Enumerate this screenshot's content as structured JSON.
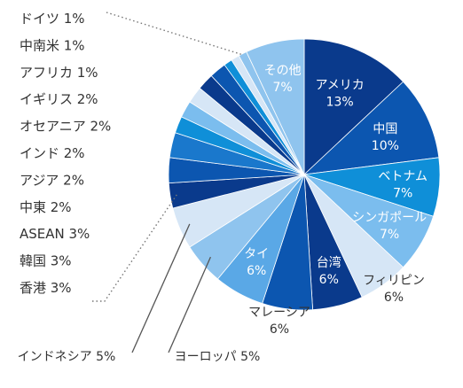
{
  "chart_data": {
    "type": "pie",
    "unit": "%",
    "slices": [
      {
        "label": "アメリカ",
        "value": 13,
        "color": "#0a3a8c"
      },
      {
        "label": "中国",
        "value": 10,
        "color": "#0c56b0"
      },
      {
        "label": "ベトナム",
        "value": 7,
        "color": "#0f8fd8"
      },
      {
        "label": "シンガポール",
        "value": 7,
        "color": "#7bbdee"
      },
      {
        "label": "フィリピン",
        "value": 6,
        "color": "#d6e6f6"
      },
      {
        "label": "台湾",
        "value": 6,
        "color": "#0a3a8c"
      },
      {
        "label": "マレーシア",
        "value": 6,
        "color": "#0c56b0"
      },
      {
        "label": "タイ",
        "value": 6,
        "color": "#5aa8e6"
      },
      {
        "label": "ヨーロッパ",
        "value": 5,
        "color": "#8fc4ee"
      },
      {
        "label": "インドネシア",
        "value": 5,
        "color": "#d6e6f6"
      },
      {
        "label": "香港",
        "value": 3,
        "color": "#0a3a8c"
      },
      {
        "label": "韓国",
        "value": 3,
        "color": "#0c56b0"
      },
      {
        "label": "ASEAN",
        "value": 3,
        "color": "#1a78cc"
      },
      {
        "label": "中東",
        "value": 2,
        "color": "#0f8fd8"
      },
      {
        "label": "アジア",
        "value": 2,
        "color": "#7bbdee"
      },
      {
        "label": "インド",
        "value": 2,
        "color": "#d6e6f6"
      },
      {
        "label": "オセアニア",
        "value": 2,
        "color": "#0a3a8c"
      },
      {
        "label": "イギリス",
        "value": 2,
        "color": "#0c56b0"
      },
      {
        "label": "アフリカ",
        "value": 1,
        "color": "#0f8fd8"
      },
      {
        "label": "中南米",
        "value": 1,
        "color": "#d6e6f6"
      },
      {
        "label": "ドイツ",
        "value": 1,
        "color": "#8fc4ee"
      },
      {
        "label": "その他",
        "value": 7,
        "color": "#8fc4ee"
      }
    ]
  }
}
